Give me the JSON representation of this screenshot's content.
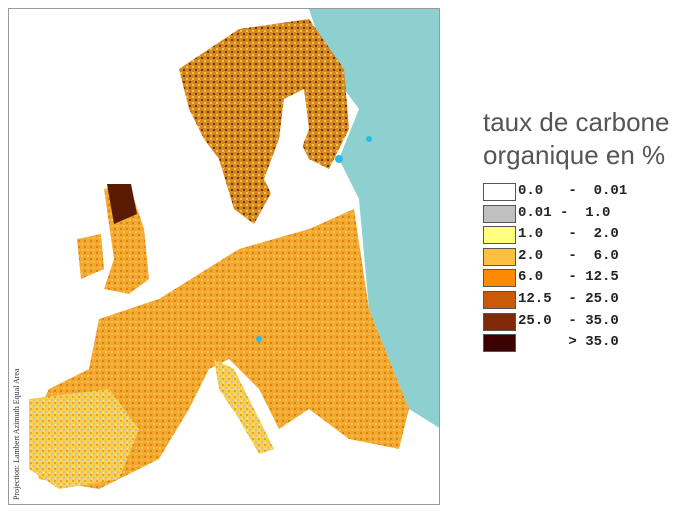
{
  "map": {
    "projection_note": "Projection: Lambert Azimuth Equal Area",
    "colors": {
      "sea_outside": "#8ecfd0",
      "land_base": "#f0a830",
      "lakes": "#30b8e8"
    }
  },
  "legend": {
    "title_line1": "taux de carbone",
    "title_line2": "organique en %",
    "items": [
      {
        "label": "0.0   -  0.01",
        "color": "#ffffff"
      },
      {
        "label": "0.01 -  1.0",
        "color": "#c0c0c0"
      },
      {
        "label": "1.0   -  2.0",
        "color": "#ffff80"
      },
      {
        "label": "2.0   -  6.0",
        "color": "#fcc040"
      },
      {
        "label": "6.0   - 12.5",
        "color": "#ff8a00"
      },
      {
        "label": "12.5  - 25.0",
        "color": "#c85a08"
      },
      {
        "label": "25.0  - 35.0",
        "color": "#802808"
      },
      {
        "label": "      > 35.0",
        "color": "#3c0000"
      }
    ]
  }
}
